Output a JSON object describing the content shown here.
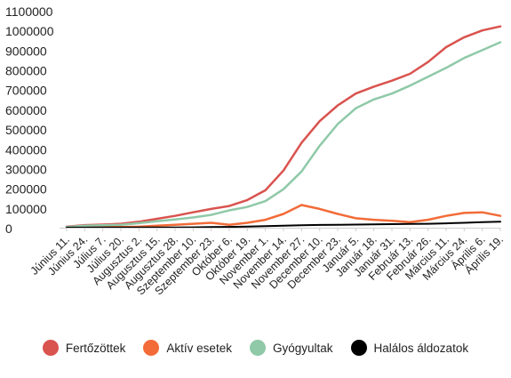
{
  "chart_data": {
    "type": "line",
    "title": "",
    "xlabel": "",
    "ylabel": "",
    "ylim": [
      0,
      1100000
    ],
    "yticks": [
      0,
      100000,
      200000,
      300000,
      400000,
      500000,
      600000,
      700000,
      800000,
      900000,
      1000000,
      1100000
    ],
    "ytick_labels": [
      "0",
      "100000",
      "200000",
      "300000",
      "400000",
      "500000",
      "600000",
      "700000",
      "800000",
      "900000",
      "1000000",
      "1100000"
    ],
    "grid": false,
    "legend_position": "bottom",
    "categories": [
      "Június 11.",
      "Június 24.",
      "Július 7.",
      "Július 20.",
      "Augusztus 2.",
      "Augusztus 15.",
      "Augusztus 28.",
      "Szeptember 10.",
      "Szeptember 23.",
      "Október 6.",
      "Október 19.",
      "November 1.",
      "November 14.",
      "November 27.",
      "December 10.",
      "December 23.",
      "Január 5.",
      "Január 18.",
      "Január 31.",
      "Február 13.",
      "Február 26.",
      "Március 11.",
      "Március 24.",
      "Április 6.",
      "Április 19."
    ],
    "series": [
      {
        "name": "Fertőzöttek",
        "color": "#d9534f",
        "values": [
          5000,
          13000,
          16000,
          20000,
          30000,
          45000,
          60000,
          78000,
          95000,
          110000,
          140000,
          190000,
          290000,
          430000,
          540000,
          620000,
          680000,
          715000,
          745000,
          780000,
          840000,
          915000,
          965000,
          1000000,
          1020000
        ]
      },
      {
        "name": "Aktív esetek",
        "color": "#f26b38",
        "values": [
          1500,
          2500,
          3000,
          3500,
          5000,
          10000,
          15000,
          20000,
          25000,
          15000,
          25000,
          40000,
          70000,
          115000,
          95000,
          70000,
          48000,
          40000,
          35000,
          28000,
          40000,
          60000,
          75000,
          78000,
          60000
        ]
      },
      {
        "name": "Gyógyultak",
        "color": "#8fc9a8",
        "values": [
          3000,
          10000,
          12000,
          15000,
          23000,
          33000,
          42000,
          52000,
          65000,
          88000,
          105000,
          135000,
          195000,
          285000,
          415000,
          525000,
          605000,
          650000,
          680000,
          720000,
          765000,
          810000,
          860000,
          900000,
          940000
        ]
      },
      {
        "name": "Halálos áldozatok",
        "color": "#000000",
        "values": [
          500,
          600,
          700,
          800,
          1000,
          1200,
          1500,
          2000,
          3000,
          4000,
          5500,
          7500,
          10000,
          12000,
          14000,
          15000,
          16000,
          17000,
          18000,
          19000,
          20000,
          22000,
          25000,
          28000,
          30000
        ]
      }
    ]
  }
}
